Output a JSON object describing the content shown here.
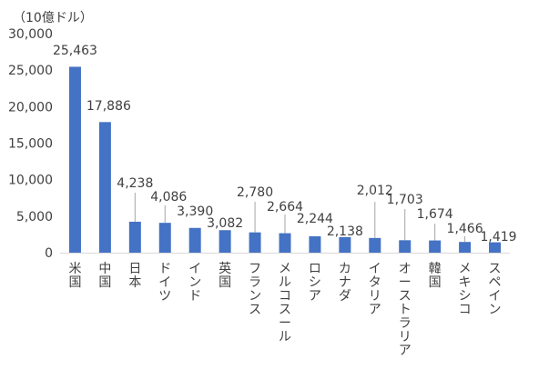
{
  "chart_data": {
    "type": "bar",
    "unit_label": "（10億ドル）",
    "categories": [
      "米国",
      "中国",
      "日本",
      "ドイツ",
      "インド",
      "英国",
      "フランス",
      "メルコスール",
      "ロシア",
      "カナダ",
      "イタリア",
      "オーストラリア",
      "韓国",
      "メキシコ",
      "スペイン"
    ],
    "values": [
      25463,
      17886,
      4238,
      4086,
      3390,
      3082,
      2780,
      2664,
      2244,
      2138,
      2012,
      1703,
      1674,
      1466,
      1419
    ],
    "data_labels": [
      "25,463",
      "17,886",
      "4,238",
      "4,086",
      "3,390",
      "3,082",
      "2,780",
      "2,664",
      "2,244",
      "2,138",
      "2,012",
      "1,703",
      "1,674",
      "1,466",
      "1,419"
    ],
    "y_ticks": [
      0,
      5000,
      10000,
      15000,
      20000,
      25000,
      30000
    ],
    "y_tick_labels": [
      "0",
      "5,000",
      "10,000",
      "15,000",
      "20,000",
      "25,000",
      "30,000"
    ],
    "ylim": [
      0,
      30000
    ],
    "grid": false,
    "bar_color": "#4472c4"
  }
}
